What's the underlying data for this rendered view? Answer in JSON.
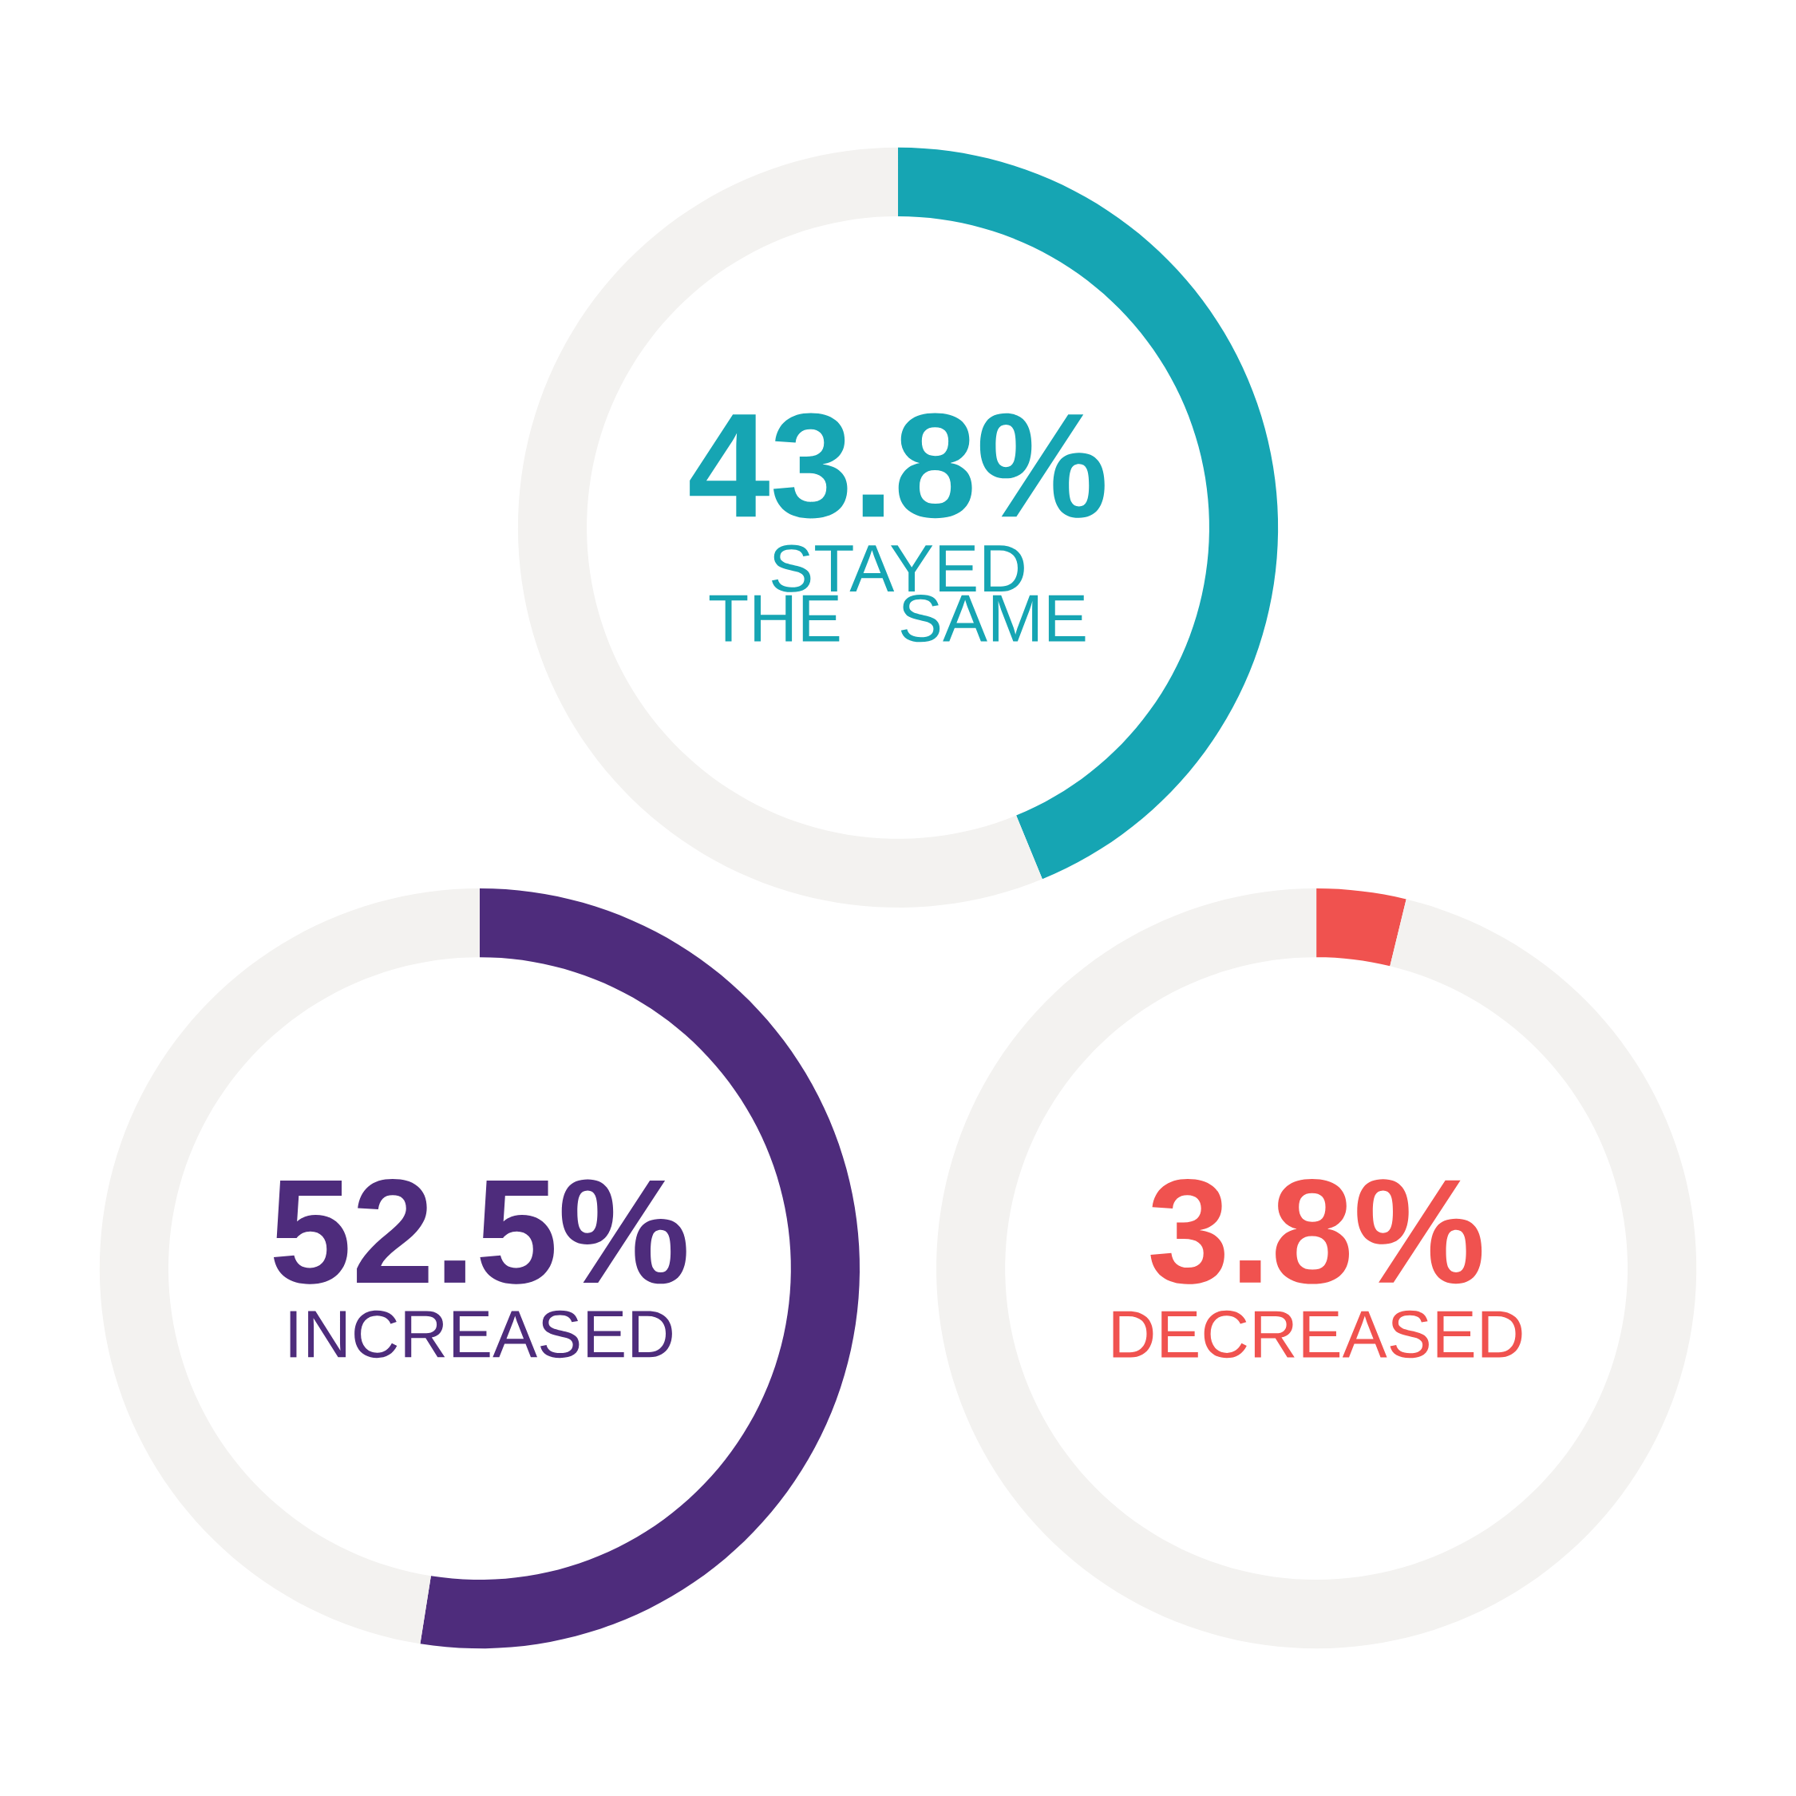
{
  "chart_data": [
    {
      "type": "donut",
      "categories": [
        "STAYED THE SAME",
        null
      ],
      "values": [
        43.8,
        56.2
      ],
      "colors": [
        "#16a5b3",
        "#f3f2f0"
      ],
      "value_labels": [
        "43.8%",
        null
      ]
    },
    {
      "type": "donut",
      "categories": [
        "INCREASED",
        null
      ],
      "values": [
        52.5,
        47.5
      ],
      "colors": [
        "#4e2c7c",
        "#f3f2f0"
      ],
      "value_labels": [
        "52.5%",
        null
      ]
    },
    {
      "type": "donut",
      "categories": [
        "DECREASED",
        null
      ],
      "values": [
        3.8,
        96.2
      ],
      "colors": [
        "#f0524f",
        "#f3f2f0"
      ],
      "value_labels": [
        "3.8%",
        null
      ]
    }
  ]
}
